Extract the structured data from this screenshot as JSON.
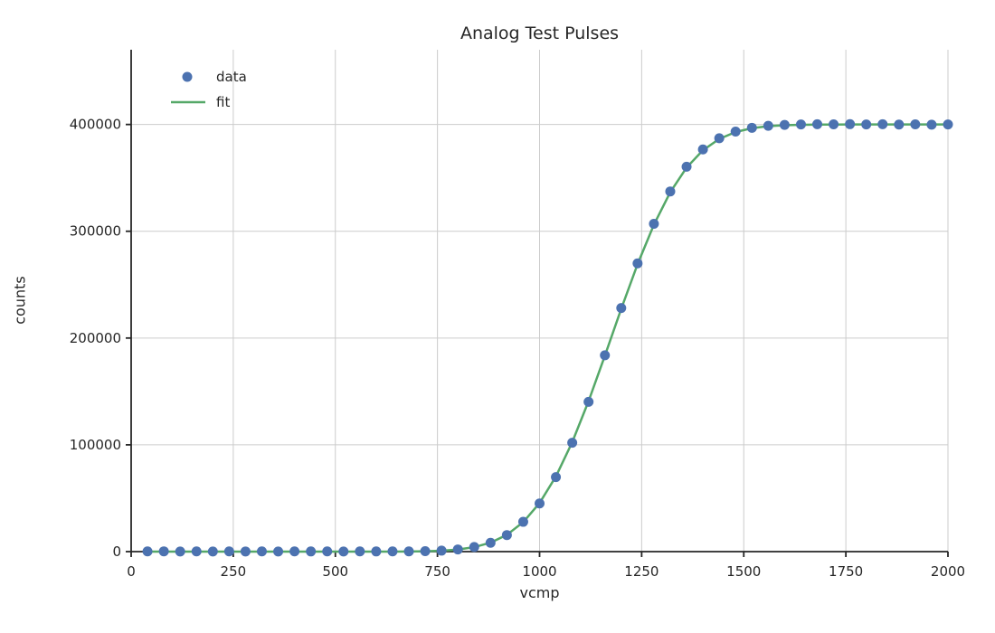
{
  "chart_data": {
    "type": "scatter",
    "title": "Analog Test Pulses",
    "xlabel": "vcmp",
    "ylabel": "counts",
    "xlim": [
      0,
      2000
    ],
    "ylim": [
      0,
      470000
    ],
    "xticks": [
      0,
      250,
      500,
      750,
      1000,
      1250,
      1500,
      1750,
      2000
    ],
    "yticks": [
      0,
      100000,
      200000,
      300000,
      400000
    ],
    "grid": true,
    "legend_position": "upper left",
    "colors": {
      "data": "#4c72b0",
      "fit": "#55a868",
      "grid": "#cccccc",
      "spine": "#262626",
      "text": "#262626"
    },
    "series": [
      {
        "name": "data",
        "type": "scatter",
        "color": "#4c72b0",
        "x": [
          40,
          80,
          120,
          160,
          200,
          240,
          280,
          320,
          360,
          400,
          440,
          480,
          520,
          560,
          600,
          640,
          680,
          720,
          760,
          800,
          840,
          880,
          920,
          960,
          1000,
          1040,
          1080,
          1120,
          1160,
          1200,
          1240,
          1280,
          1320,
          1360,
          1400,
          1440,
          1480,
          1520,
          1560,
          1600,
          1640,
          1680,
          1720,
          1760,
          1800,
          1840,
          1880,
          1920,
          1960,
          2000
        ],
        "values": [
          180,
          260,
          120,
          220,
          90,
          200,
          150,
          240,
          110,
          190,
          160,
          230,
          140,
          210,
          170,
          250,
          190,
          420,
          910,
          2060,
          4300,
          8250,
          15500,
          27900,
          45100,
          69800,
          101900,
          140300,
          183900,
          228100,
          269900,
          307000,
          337300,
          360400,
          376600,
          387100,
          393400,
          396900,
          398800,
          399600,
          400000,
          400200,
          400100,
          400300,
          400000,
          400200,
          399900,
          400100,
          399800,
          400000
        ]
      },
      {
        "name": "fit",
        "type": "line",
        "color": "#55a868",
        "x": [
          40,
          80,
          120,
          160,
          200,
          240,
          280,
          320,
          360,
          400,
          440,
          480,
          520,
          560,
          600,
          640,
          680,
          720,
          760,
          800,
          840,
          880,
          920,
          960,
          1000,
          1040,
          1080,
          1120,
          1160,
          1200,
          1240,
          1280,
          1320,
          1360,
          1400,
          1440,
          1480,
          1520,
          1560,
          1600,
          1640,
          1680,
          1720,
          1760,
          1800,
          1840,
          1880,
          1920,
          1960,
          2000
        ],
        "values": [
          0,
          0,
          0,
          0,
          0,
          0,
          0,
          0,
          0,
          0,
          0,
          0,
          1,
          4,
          15,
          45,
          128,
          340,
          844,
          1940,
          4180,
          8390,
          15720,
          27620,
          45490,
          70370,
          102470,
          140900,
          183540,
          227370,
          269190,
          306180,
          336540,
          359600,
          375860,
          386500,
          392920,
          396530,
          398420,
          399320,
          399730,
          399900,
          399970,
          399990,
          400000,
          400000,
          400000,
          400000,
          400000,
          400000
        ]
      }
    ],
    "legend": [
      {
        "label": "data",
        "type": "scatter",
        "color": "#4c72b0"
      },
      {
        "label": "fit",
        "type": "line",
        "color": "#55a868"
      }
    ]
  }
}
